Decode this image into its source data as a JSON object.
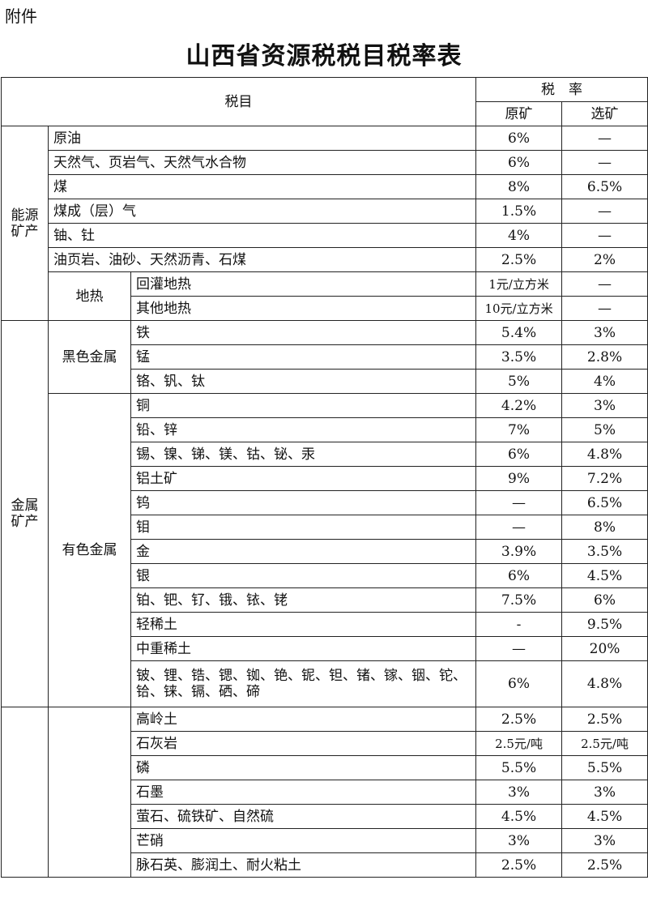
{
  "attachment_label": "附件",
  "title": "山西省资源税税目税率表",
  "header": {
    "item": "税目",
    "rate": "税　率",
    "raw_ore": "原矿",
    "processed_ore": "选矿"
  },
  "groups": [
    {
      "category": "能源矿产",
      "subgroups": [
        {
          "name": null,
          "items": [
            {
              "name": "原油",
              "raw": "6%",
              "processed": "—"
            },
            {
              "name": "天然气、页岩气、天然气水合物",
              "raw": "6%",
              "processed": "—"
            },
            {
              "name": "煤",
              "raw": "8%",
              "processed": "6.5%"
            },
            {
              "name": "煤成（层）气",
              "raw": "1.5%",
              "processed": "—"
            },
            {
              "name": "铀、钍",
              "raw": "4%",
              "processed": "—"
            },
            {
              "name": "油页岩、油砂、天然沥青、石煤",
              "raw": "2.5%",
              "processed": "2%"
            }
          ]
        },
        {
          "name": "地热",
          "items": [
            {
              "name": "回灌地热",
              "raw": "1元/立方米",
              "processed": "—"
            },
            {
              "name": "其他地热",
              "raw": "10元/立方米",
              "processed": "—"
            }
          ]
        }
      ]
    },
    {
      "category": "金属矿产",
      "subgroups": [
        {
          "name": "黑色金属",
          "items": [
            {
              "name": "铁",
              "raw": "5.4%",
              "processed": "3%"
            },
            {
              "name": "锰",
              "raw": "3.5%",
              "processed": "2.8%"
            },
            {
              "name": "铬、钒、钛",
              "raw": "5%",
              "processed": "4%"
            }
          ]
        },
        {
          "name": "有色金属",
          "items": [
            {
              "name": "铜",
              "raw": "4.2%",
              "processed": "3%"
            },
            {
              "name": "铅、锌",
              "raw": "7%",
              "processed": "5%"
            },
            {
              "name": "锡、镍、锑、镁、钴、铋、汞",
              "raw": "6%",
              "processed": "4.8%"
            },
            {
              "name": "铝土矿",
              "raw": "9%",
              "processed": "7.2%"
            },
            {
              "name": "钨",
              "raw": "—",
              "processed": "6.5%"
            },
            {
              "name": "钼",
              "raw": "—",
              "processed": "8%"
            },
            {
              "name": "金",
              "raw": "3.9%",
              "processed": "3.5%"
            },
            {
              "name": "银",
              "raw": "6%",
              "processed": "4.5%"
            },
            {
              "name": "铂、钯、钌、锇、铱、铑",
              "raw": "7.5%",
              "processed": "6%"
            },
            {
              "name": "轻稀土",
              "raw": "-",
              "processed": "9.5%"
            },
            {
              "name": "中重稀土",
              "raw": "—",
              "processed": "20%"
            },
            {
              "name": "铍、锂、锆、锶、铷、铯、铌、钽、锗、镓、铟、铊、铪、铼、镉、硒、碲",
              "raw": "6%",
              "processed": "4.8%"
            }
          ]
        }
      ]
    },
    {
      "category": "",
      "subgroups": [
        {
          "name": "",
          "items": [
            {
              "name": "高岭土",
              "raw": "2.5%",
              "processed": "2.5%"
            },
            {
              "name": "石灰岩",
              "raw": "2.5元/吨",
              "processed": "2.5元/吨"
            },
            {
              "name": "磷",
              "raw": "5.5%",
              "processed": "5.5%"
            },
            {
              "name": "石墨",
              "raw": "3%",
              "processed": "3%"
            },
            {
              "name": "萤石、硫铁矿、自然硫",
              "raw": "4.5%",
              "processed": "4.5%"
            },
            {
              "name": "芒硝",
              "raw": "3%",
              "processed": "3%"
            },
            {
              "name": "脉石英、膨润土、耐火粘土",
              "raw": "2.5%",
              "processed": "2.5%"
            }
          ]
        }
      ]
    }
  ]
}
